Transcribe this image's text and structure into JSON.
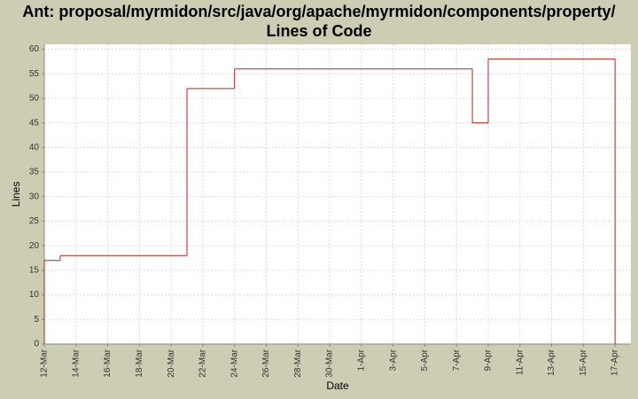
{
  "chart_data": {
    "type": "step",
    "title": "Ant: proposal/myrmidon/src/java/org/apache/myrmidon/components/property/",
    "subtitle": "Lines of Code",
    "x_label": "Date",
    "y_label": "Lines",
    "x": [
      "12-Mar",
      "12-Mar",
      "13-Mar",
      "21-Mar",
      "24-Mar",
      "8-Apr",
      "9-Apr",
      "17-Apr"
    ],
    "series": [
      {
        "name": "Lines",
        "color": "#b22222",
        "values": [
          0,
          17,
          18,
          52,
          56,
          45,
          58,
          0
        ]
      }
    ],
    "xlim": [
      "12-Mar",
      "18-Apr"
    ],
    "xticks": [
      "12-Mar",
      "14-Mar",
      "16-Mar",
      "18-Mar",
      "20-Mar",
      "22-Mar",
      "24-Mar",
      "26-Mar",
      "28-Mar",
      "30-Mar",
      "1-Apr",
      "3-Apr",
      "5-Apr",
      "7-Apr",
      "9-Apr",
      "11-Apr",
      "13-Apr",
      "15-Apr",
      "17-Apr"
    ],
    "ylim": [
      0,
      61
    ],
    "yticks": [
      0,
      5,
      10,
      15,
      20,
      25,
      30,
      35,
      40,
      45,
      50,
      55,
      60
    ],
    "grid": true
  }
}
